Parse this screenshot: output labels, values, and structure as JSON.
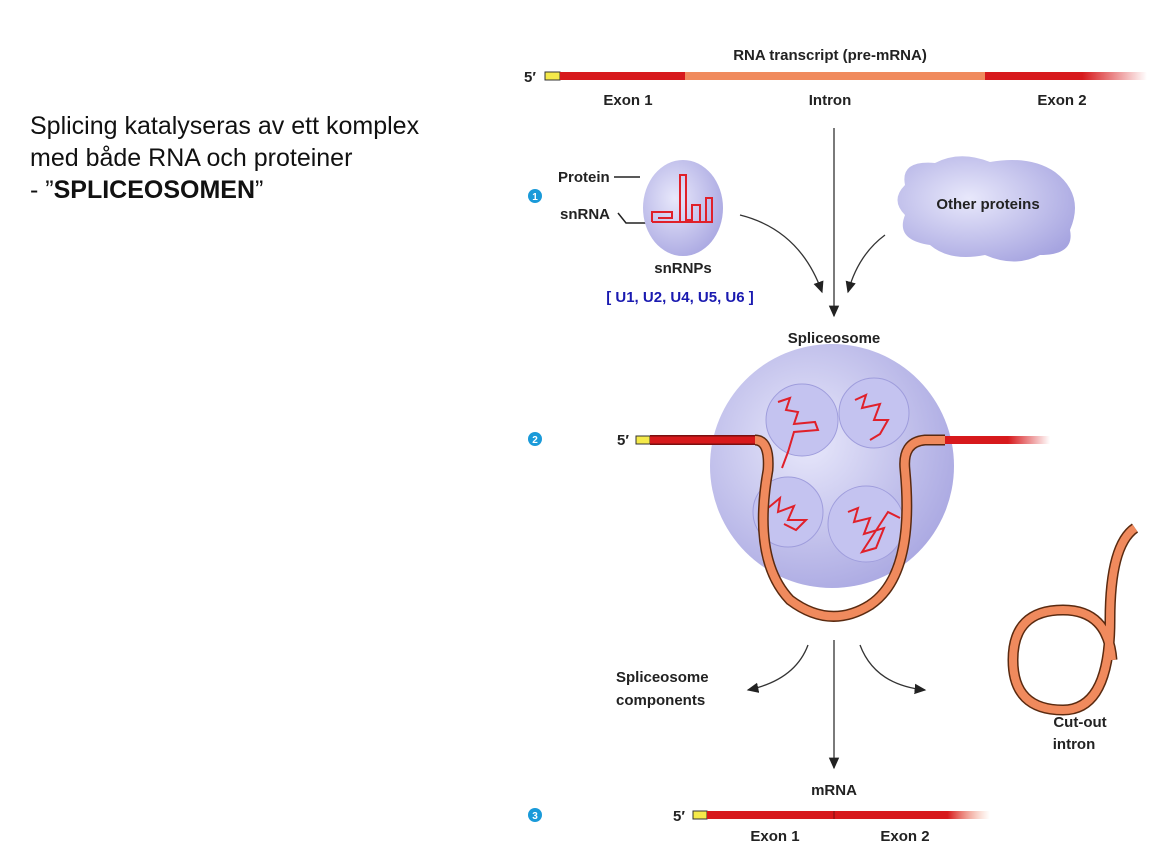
{
  "slide": {
    "line1": "Splicing katalyseras av ett komplex",
    "line2": "med både RNA och proteiner",
    "line3_prefix": " - ”",
    "line3_bold": "SPLICEOSOMEN",
    "line3_suffix": "”"
  },
  "diagram": {
    "title": "RNA transcript (pre-mRNA)",
    "five_prime": "5′",
    "exon1": "Exon 1",
    "intron": "Intron",
    "exon2": "Exon 2",
    "steps": [
      "1",
      "2",
      "3"
    ],
    "protein": "Protein",
    "snrna": "snRNA",
    "snrnps": "snRNPs",
    "snrnp_list": "[ U1, U2, U4, U5, U6 ]",
    "other_proteins": "Other proteins",
    "spliceosome": "Spliceosome",
    "components_1": "Spliceosome",
    "components_2": "components",
    "cutout_1": "Cut-out",
    "cutout_2": "intron",
    "mrna": "mRNA"
  },
  "colors": {
    "exon": "#d7191c",
    "intron": "#f08a5d",
    "cap": "#f5ea4a",
    "protein": "#b9b8ec",
    "step_badge": "#1a9ad9",
    "snrnp_list": "#1a1ab0"
  }
}
